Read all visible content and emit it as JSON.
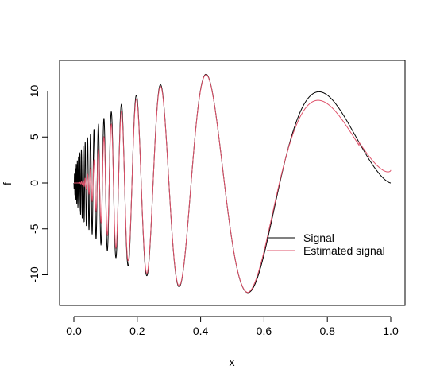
{
  "chart_data": {
    "type": "line",
    "title": "",
    "xlabel": "x",
    "ylabel": "f",
    "xlim": [
      0.0,
      1.0
    ],
    "ylim": [
      -13.3,
      12.0
    ],
    "x_ticks": [
      "0.0",
      "0.2",
      "0.4",
      "0.6",
      "0.8",
      "1.0"
    ],
    "y_ticks": [
      "-10",
      "-5",
      "0",
      "5",
      "10"
    ],
    "grid": false,
    "legend_position": "bottom-right",
    "series": [
      {
        "name": "Signal",
        "color": "#000000",
        "function": "Doppler signal, 0 to 1 (Donoho–Johnstone test function)"
      },
      {
        "name": "Estimated signal",
        "color": "#DF536B",
        "function": "Smoothed estimate of the Doppler signal"
      }
    ]
  }
}
